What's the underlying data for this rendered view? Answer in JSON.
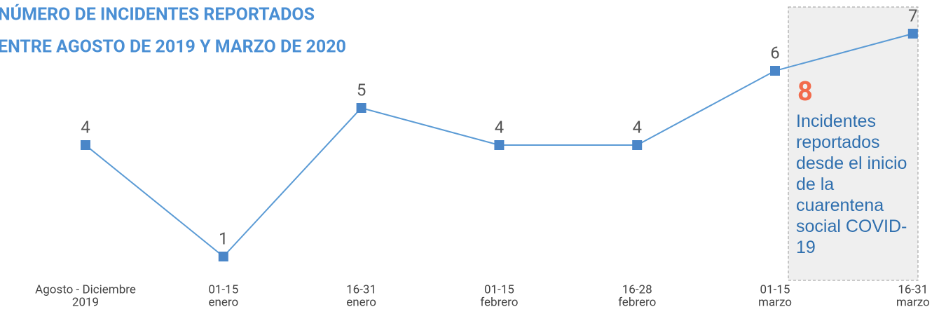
{
  "chart_data": {
    "type": "line",
    "title": [
      "NÚMERO DE INCIDENTES REPORTADOS",
      "ENTRE AGOSTO DE 2019 Y MARZO DE 2020"
    ],
    "categories": [
      [
        "Agosto - Diciembre",
        "2019"
      ],
      [
        "01-15",
        "enero"
      ],
      [
        "16-31",
        "enero"
      ],
      [
        "01-15",
        "febrero"
      ],
      [
        "16-28",
        "febrero"
      ],
      [
        "01-15",
        "marzo"
      ],
      [
        "16-31",
        "marzo"
      ]
    ],
    "series": [
      {
        "name": "Incidentes",
        "color": "#4a86c8",
        "values": [
          4,
          1,
          5,
          4,
          4,
          6,
          7
        ]
      }
    ],
    "ylim": [
      0,
      7
    ],
    "annotation": {
      "value": 8,
      "text": "Incidentes reportados desde el inicio de la cuarentena social COVID-19"
    }
  }
}
